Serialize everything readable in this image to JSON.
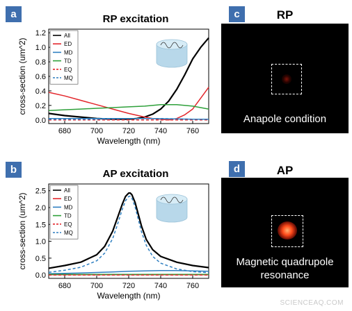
{
  "panels": {
    "a": {
      "letter": "a"
    },
    "b": {
      "letter": "b"
    },
    "c": {
      "letter": "c",
      "title": "RP",
      "caption": "Anapole condition"
    },
    "d": {
      "letter": "d",
      "title": "AP",
      "caption": "Magnetic quadrupole\nresonance"
    }
  },
  "watermark": "SCIENCEAQ.COM",
  "chart_data": [
    {
      "type": "line",
      "title": "RP excitation",
      "xlabel": "Wavelength (nm)",
      "ylabel": "cross-section (um^2)",
      "xlim": [
        670,
        770
      ],
      "ylim": [
        -0.05,
        1.25
      ],
      "xticks": [
        680,
        700,
        720,
        740,
        760
      ],
      "yticks": [
        0.0,
        0.2,
        0.4,
        0.6,
        0.8,
        1.0,
        1.2
      ],
      "legend_position": "top-left",
      "series": [
        {
          "name": "All",
          "color": "#000000",
          "dash": "",
          "x": [
            670,
            680,
            690,
            700,
            710,
            720,
            725,
            730,
            735,
            740,
            745,
            750,
            755,
            760,
            765,
            770
          ],
          "y": [
            0.09,
            0.06,
            0.04,
            0.02,
            0.01,
            0.01,
            0.02,
            0.04,
            0.08,
            0.15,
            0.26,
            0.42,
            0.62,
            0.84,
            1.0,
            1.13
          ]
        },
        {
          "name": "ED",
          "color": "#e3262b",
          "dash": "",
          "x": [
            670,
            680,
            690,
            700,
            710,
            720,
            730,
            735,
            740,
            745,
            750,
            755,
            760,
            765,
            770
          ],
          "y": [
            0.38,
            0.33,
            0.27,
            0.21,
            0.15,
            0.09,
            0.04,
            0.02,
            0.01,
            0.0,
            0.02,
            0.07,
            0.15,
            0.3,
            0.45
          ]
        },
        {
          "name": "MD",
          "color": "#2e7fc1",
          "dash": "",
          "x": [
            670,
            700,
            730,
            760,
            770
          ],
          "y": [
            0.02,
            0.02,
            0.02,
            0.01,
            0.01
          ]
        },
        {
          "name": "TD",
          "color": "#2ea03a",
          "dash": "",
          "x": [
            670,
            680,
            690,
            700,
            710,
            720,
            730,
            740,
            745,
            750,
            760,
            770
          ],
          "y": [
            0.13,
            0.14,
            0.15,
            0.16,
            0.17,
            0.18,
            0.19,
            0.21,
            0.21,
            0.21,
            0.19,
            0.15
          ]
        },
        {
          "name": "EQ",
          "color": "#e3262b",
          "dash": "4,3",
          "x": [
            670,
            700,
            730,
            770
          ],
          "y": [
            0.0,
            0.0,
            0.0,
            0.0
          ]
        },
        {
          "name": "MQ",
          "color": "#2e7fc1",
          "dash": "4,3",
          "x": [
            670,
            700,
            720,
            740,
            760,
            770
          ],
          "y": [
            0.01,
            0.01,
            0.02,
            0.02,
            0.01,
            0.01
          ]
        }
      ]
    },
    {
      "type": "line",
      "title": "AP excitation",
      "xlabel": "Wavelength (nm)",
      "ylabel": "cross-section (um^2)",
      "xlim": [
        670,
        770
      ],
      "ylim": [
        -0.1,
        2.7
      ],
      "xticks": [
        680,
        700,
        720,
        740,
        760
      ],
      "yticks": [
        0.0,
        0.5,
        1.0,
        1.5,
        2.0,
        2.5
      ],
      "legend_position": "top-left",
      "series": [
        {
          "name": "All",
          "color": "#000000",
          "dash": "",
          "x": [
            670,
            680,
            690,
            700,
            705,
            710,
            713,
            716,
            718,
            720,
            721,
            722,
            724,
            726,
            728,
            731,
            735,
            740,
            750,
            760,
            770
          ],
          "y": [
            0.2,
            0.28,
            0.38,
            0.6,
            0.85,
            1.3,
            1.7,
            2.1,
            2.33,
            2.43,
            2.43,
            2.38,
            2.15,
            1.8,
            1.45,
            1.05,
            0.75,
            0.55,
            0.38,
            0.28,
            0.22
          ]
        },
        {
          "name": "ED",
          "color": "#e3262b",
          "dash": "",
          "x": [
            670,
            720,
            770
          ],
          "y": [
            0.01,
            0.01,
            0.01
          ]
        },
        {
          "name": "MD",
          "color": "#2e7fc1",
          "dash": "",
          "x": [
            670,
            690,
            710,
            720,
            730,
            740,
            750,
            760,
            770
          ],
          "y": [
            0.04,
            0.06,
            0.09,
            0.11,
            0.12,
            0.13,
            0.13,
            0.12,
            0.11
          ]
        },
        {
          "name": "TD",
          "color": "#2ea03a",
          "dash": "",
          "x": [
            670,
            720,
            770
          ],
          "y": [
            0.02,
            0.02,
            0.02
          ]
        },
        {
          "name": "EQ",
          "color": "#e3262b",
          "dash": "4,3",
          "x": [
            670,
            720,
            770
          ],
          "y": [
            0.0,
            0.0,
            0.0
          ]
        },
        {
          "name": "MQ",
          "color": "#2e7fc1",
          "dash": "4,3",
          "x": [
            670,
            680,
            690,
            700,
            705,
            710,
            713,
            716,
            718,
            720,
            721,
            722,
            724,
            726,
            728,
            731,
            735,
            740,
            750,
            760,
            770
          ],
          "y": [
            0.08,
            0.14,
            0.23,
            0.42,
            0.65,
            1.08,
            1.5,
            1.95,
            2.2,
            2.33,
            2.34,
            2.28,
            2.02,
            1.65,
            1.28,
            0.88,
            0.55,
            0.35,
            0.18,
            0.1,
            0.07
          ]
        }
      ]
    }
  ]
}
